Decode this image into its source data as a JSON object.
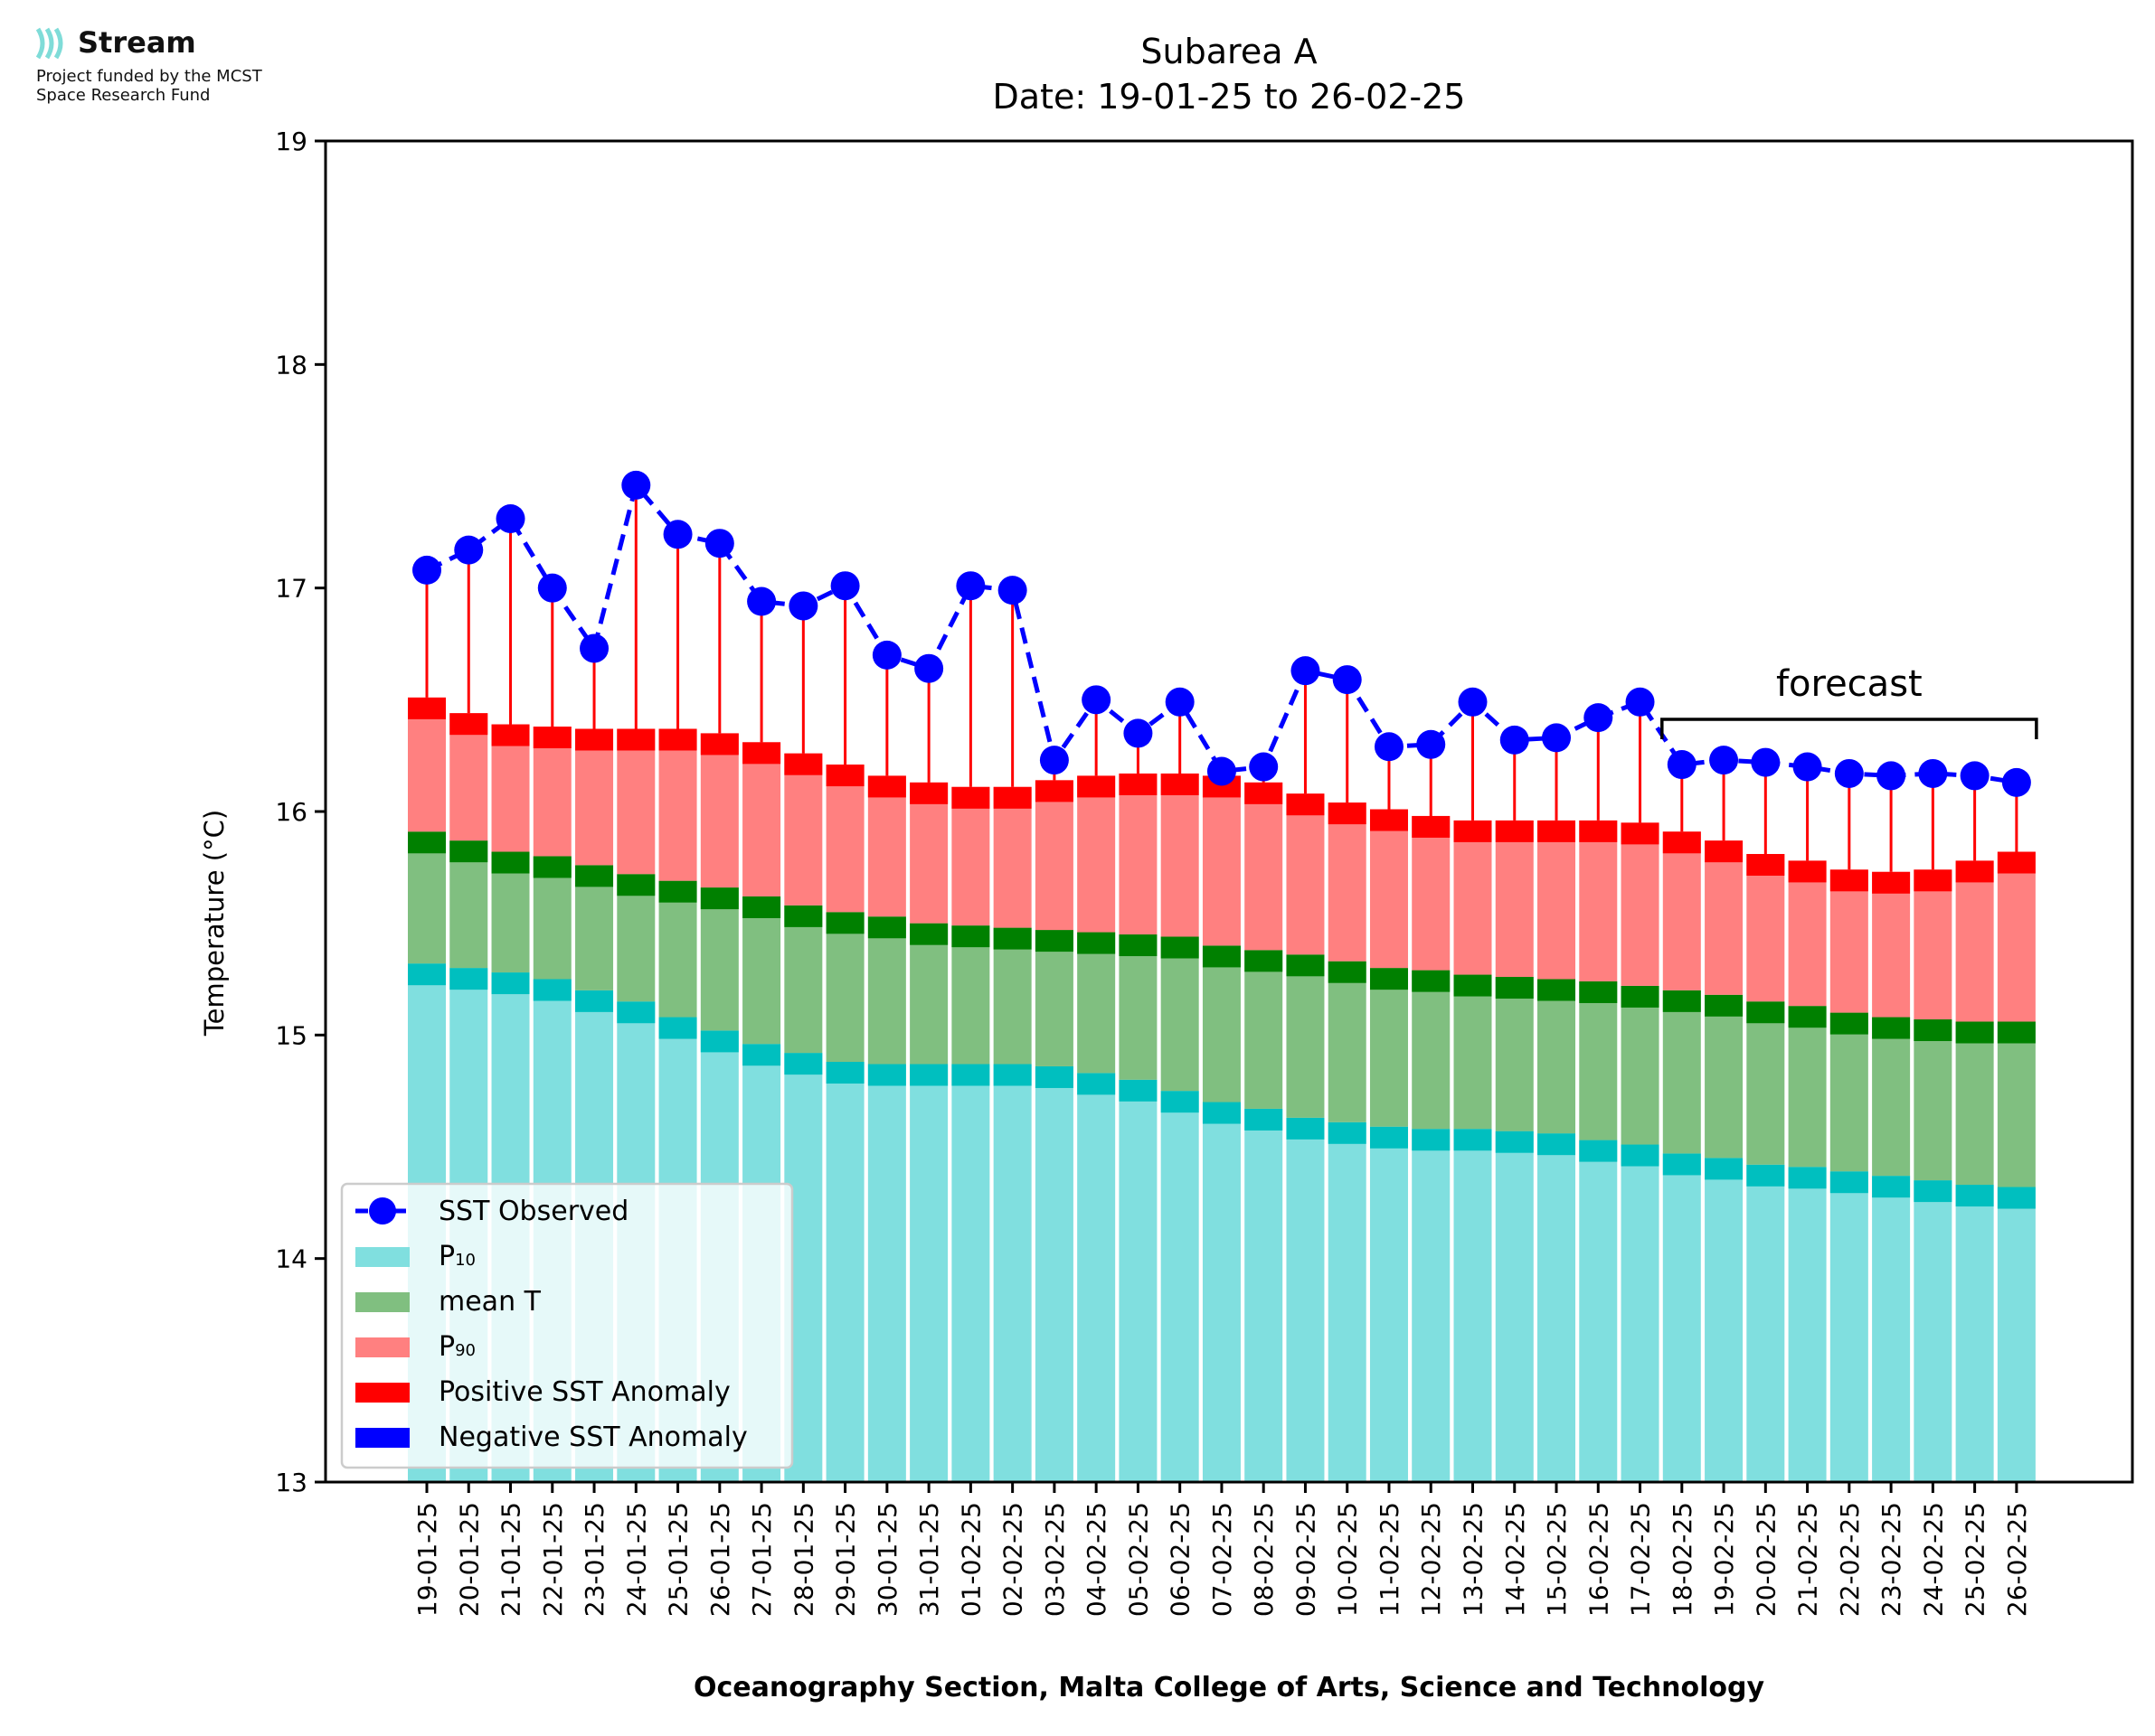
{
  "logo": {
    "brand": "Stream",
    "line1": "Project funded by the MCST",
    "line2": "Space Research Fund",
    "icon": "stream-waves-icon"
  },
  "chart_data": {
    "type": "bar",
    "title": "Subarea A",
    "subtitle": "Date: 19-01-25 to 26-02-25",
    "xlabel": "Oceanography Section, Malta College of Arts, Science and Technology",
    "ylabel": "Temperature (°C)",
    "ylim": [
      13,
      19
    ],
    "yticks": [
      13,
      14,
      15,
      16,
      17,
      18,
      19
    ],
    "grid": false,
    "legend_position": "lower-left",
    "forecast_label": "forecast",
    "forecast_range": [
      "18-02-25",
      "26-02-25"
    ],
    "categories": [
      "19-01-25",
      "20-01-25",
      "21-01-25",
      "22-01-25",
      "23-01-25",
      "24-01-25",
      "25-01-25",
      "26-01-25",
      "27-01-25",
      "28-01-25",
      "29-01-25",
      "30-01-25",
      "31-01-25",
      "01-02-25",
      "02-02-25",
      "03-02-25",
      "04-02-25",
      "05-02-25",
      "06-02-25",
      "07-02-25",
      "08-02-25",
      "09-02-25",
      "10-02-25",
      "11-02-25",
      "12-02-25",
      "13-02-25",
      "14-02-25",
      "15-02-25",
      "16-02-25",
      "17-02-25",
      "18-02-25",
      "19-02-25",
      "20-02-25",
      "21-02-25",
      "22-02-25",
      "23-02-25",
      "24-02-25",
      "25-02-25",
      "26-02-25"
    ],
    "legend": {
      "sst": "SST Observed",
      "p10_main": "P",
      "p10_sub": "10",
      "mean": "mean T",
      "p90_main": "P",
      "p90_sub": "90",
      "pos": "Positive SST Anomaly",
      "neg": "Negative SST Anomaly"
    },
    "colors": {
      "p10": "#80dfdf",
      "p10_edge": "#00bfbf",
      "mean": "#80bf80",
      "mean_edge": "#008000",
      "p90": "#ff8080",
      "p90_edge": "#ff0000",
      "sst": "#0000ff",
      "positive_anomaly": "#ff0000",
      "negative_anomaly": "#0000ff"
    },
    "series": [
      {
        "name": "P₁₀",
        "key": "p10",
        "values": [
          15.32,
          15.3,
          15.28,
          15.25,
          15.2,
          15.15,
          15.08,
          15.02,
          14.96,
          14.92,
          14.88,
          14.87,
          14.87,
          14.87,
          14.87,
          14.86,
          14.83,
          14.8,
          14.75,
          14.7,
          14.67,
          14.63,
          14.61,
          14.59,
          14.58,
          14.58,
          14.57,
          14.56,
          14.53,
          14.51,
          14.47,
          14.45,
          14.42,
          14.41,
          14.39,
          14.37,
          14.35,
          14.33,
          14.32
        ]
      },
      {
        "name": "mean T",
        "key": "mean",
        "values": [
          15.91,
          15.87,
          15.82,
          15.8,
          15.76,
          15.72,
          15.69,
          15.66,
          15.62,
          15.58,
          15.55,
          15.53,
          15.5,
          15.49,
          15.48,
          15.47,
          15.46,
          15.45,
          15.44,
          15.4,
          15.38,
          15.36,
          15.33,
          15.3,
          15.29,
          15.27,
          15.26,
          15.25,
          15.24,
          15.22,
          15.2,
          15.18,
          15.15,
          15.13,
          15.1,
          15.08,
          15.07,
          15.06,
          15.06
        ]
      },
      {
        "name": "P₉₀",
        "key": "p90",
        "values": [
          16.51,
          16.44,
          16.39,
          16.38,
          16.37,
          16.37,
          16.37,
          16.35,
          16.31,
          16.26,
          16.21,
          16.16,
          16.13,
          16.11,
          16.11,
          16.14,
          16.16,
          16.17,
          16.17,
          16.16,
          16.13,
          16.08,
          16.04,
          16.01,
          15.98,
          15.96,
          15.96,
          15.96,
          15.96,
          15.95,
          15.91,
          15.87,
          15.81,
          15.78,
          15.74,
          15.73,
          15.74,
          15.78,
          15.82
        ]
      },
      {
        "name": "SST Observed",
        "key": "sst",
        "values": [
          17.08,
          17.17,
          17.31,
          17.0,
          16.73,
          17.46,
          17.24,
          17.2,
          16.94,
          16.92,
          17.01,
          16.7,
          16.64,
          17.01,
          16.99,
          16.23,
          16.5,
          16.35,
          16.49,
          16.18,
          16.2,
          16.63,
          16.59,
          16.29,
          16.3,
          16.49,
          16.32,
          16.33,
          16.42,
          16.49,
          16.21,
          16.23,
          16.22,
          16.2,
          16.17,
          16.16,
          16.17,
          16.16,
          16.13
        ]
      }
    ]
  }
}
